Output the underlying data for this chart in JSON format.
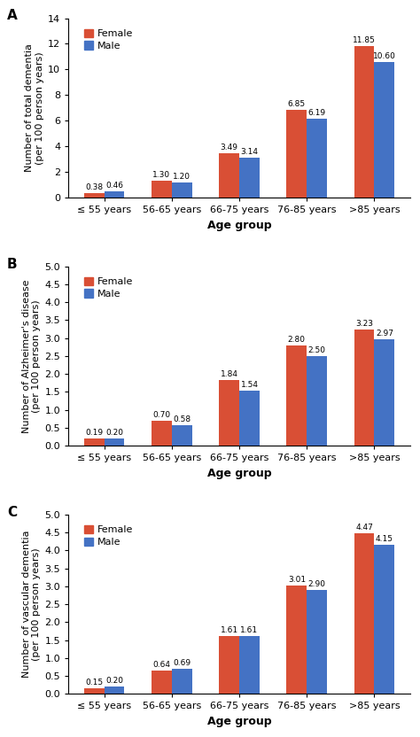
{
  "categories": [
    "≤ 55 years",
    "56-65 years",
    "66-75 years",
    "76-85 years",
    ">85 years"
  ],
  "panel_A": {
    "label": "A",
    "ylabel_line1": "Number of total dementia",
    "ylabel_line2": "(per 100 person years)",
    "female": [
      0.38,
      1.3,
      3.49,
      6.85,
      11.85
    ],
    "male": [
      0.46,
      1.2,
      3.14,
      6.19,
      10.6
    ],
    "ylim": [
      0,
      14
    ],
    "yticks": [
      0,
      2,
      4,
      6,
      8,
      10,
      12,
      14
    ]
  },
  "panel_B": {
    "label": "B",
    "ylabel_line1": "Number of Alzheimer's disease",
    "ylabel_line2": "(per 100 person years)",
    "female": [
      0.19,
      0.7,
      1.84,
      2.8,
      3.23
    ],
    "male": [
      0.2,
      0.58,
      1.54,
      2.5,
      2.97
    ],
    "ylim": [
      0,
      5.0
    ],
    "yticks": [
      0.0,
      0.5,
      1.0,
      1.5,
      2.0,
      2.5,
      3.0,
      3.5,
      4.0,
      4.5,
      5.0
    ]
  },
  "panel_C": {
    "label": "C",
    "ylabel_line1": "Number of vascular dementia",
    "ylabel_line2": "(per 100 person years)",
    "female": [
      0.15,
      0.64,
      1.61,
      3.01,
      4.47
    ],
    "male": [
      0.2,
      0.69,
      1.61,
      2.9,
      4.15
    ],
    "ylim": [
      0,
      5.0
    ],
    "yticks": [
      0.0,
      0.5,
      1.0,
      1.5,
      2.0,
      2.5,
      3.0,
      3.5,
      4.0,
      4.5,
      5.0
    ]
  },
  "female_color": "#D94F35",
  "male_color": "#4472C4",
  "xlabel": "Age group",
  "bar_width": 0.3,
  "legend_labels": [
    "Female",
    "Male"
  ],
  "annotation_fontsize": 6.5,
  "ylabel_fontsize": 8,
  "xlabel_fontsize": 9,
  "tick_fontsize": 8,
  "legend_fontsize": 8,
  "panel_label_fontsize": 11
}
